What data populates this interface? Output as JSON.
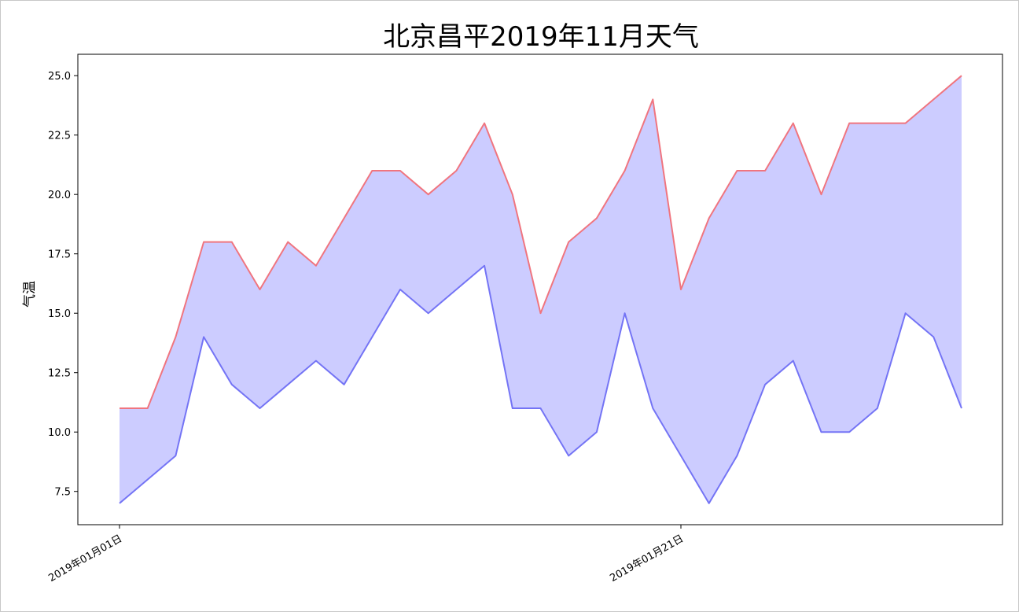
{
  "chart_data": {
    "type": "area",
    "title": "北京昌平2019年11月天气",
    "xlabel": "",
    "ylabel": "气温",
    "ylim": [
      6.1,
      25.9
    ],
    "yticks": [
      "7.5",
      "10.0",
      "12.5",
      "15.0",
      "17.5",
      "20.0",
      "22.5",
      "25.0"
    ],
    "xticks": [
      {
        "index": 0,
        "label": "2019年01月01日"
      },
      {
        "index": 20,
        "label": "2019年01月21日"
      }
    ],
    "grid": false,
    "colors": {
      "high": "#f0757f",
      "low": "#7474f5",
      "fill": "#ccccff"
    },
    "series": [
      {
        "key": "high",
        "values": [
          11,
          11,
          14,
          18,
          18,
          16,
          18,
          17,
          19,
          21,
          21,
          20,
          21,
          23,
          20,
          15,
          18,
          19,
          21,
          24,
          16,
          19,
          21,
          21,
          23,
          20,
          23,
          23,
          23,
          24,
          25
        ]
      },
      {
        "key": "low",
        "values": [
          7,
          8,
          9,
          14,
          12,
          11,
          12,
          13,
          12,
          14,
          16,
          15,
          16,
          17,
          11,
          11,
          9,
          10,
          15,
          11,
          9,
          7,
          9,
          12,
          13,
          10,
          10,
          11,
          15,
          14,
          11
        ]
      }
    ]
  }
}
